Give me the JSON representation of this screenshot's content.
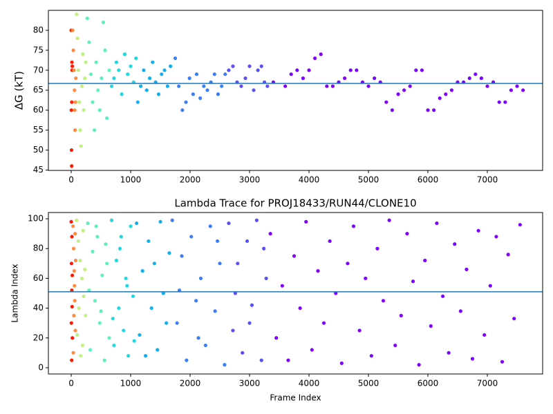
{
  "chart_data": [
    {
      "type": "scatter",
      "ylabel": "ΔG (kT)",
      "xlim": [
        -384,
        7930
      ],
      "ylim": [
        44.9,
        85
      ],
      "xticks": [
        0,
        1000,
        2000,
        3000,
        4000,
        5000,
        6000,
        7000
      ],
      "yticks": [
        45,
        50,
        55,
        60,
        65,
        70,
        75,
        80
      ],
      "hline": 66.7,
      "hline_color": "#1f77b4",
      "series": [
        {
          "color": "#ff1a00",
          "x": [
            0,
            3,
            5,
            8,
            10,
            12,
            15,
            18
          ],
          "values": [
            80,
            60,
            50,
            46,
            62,
            72,
            70,
            71
          ]
        },
        {
          "color": "#ff8a40",
          "x": [
            25,
            35,
            45,
            55,
            60,
            65,
            70,
            78
          ],
          "values": [
            80,
            75,
            70,
            65,
            60,
            55,
            62,
            68
          ]
        },
        {
          "color": "#c0f080",
          "x": [
            90,
            105,
            120,
            135,
            150,
            165,
            180,
            195,
            210,
            230,
            245
          ],
          "values": [
            84,
            78,
            70,
            62,
            55,
            51,
            66,
            74,
            60,
            68,
            72
          ]
        },
        {
          "color": "#60f0c0",
          "x": [
            270,
            300,
            330,
            360,
            390,
            420,
            450,
            480,
            510,
            540,
            570,
            600,
            640
          ],
          "values": [
            83,
            77,
            69,
            62,
            55,
            72,
            65,
            60,
            68,
            82,
            75,
            58,
            70
          ]
        },
        {
          "color": "#20d8e0",
          "x": [
            680,
            720,
            760,
            800,
            850,
            900,
            950,
            1000,
            1050,
            1090
          ],
          "values": [
            66,
            68,
            72,
            70,
            64,
            74,
            69,
            71,
            67,
            73
          ]
        },
        {
          "color": "#10b0f0",
          "x": [
            1120,
            1170,
            1220,
            1270,
            1320,
            1370,
            1420,
            1470,
            1520,
            1570,
            1620,
            1670
          ],
          "values": [
            62,
            66,
            70,
            65,
            68,
            72,
            67,
            64,
            69,
            70,
            66,
            71
          ]
        },
        {
          "color": "#3a7ff8",
          "x": [
            1750,
            1810,
            1870,
            1930,
            1990,
            2050,
            2110,
            2170,
            2230,
            2290,
            2350,
            2410,
            2470,
            2530,
            2590
          ],
          "values": [
            73,
            66,
            60,
            62,
            68,
            64,
            69,
            63,
            66,
            65,
            67,
            69,
            64,
            66,
            69
          ]
        },
        {
          "color": "#5a50f8",
          "x": [
            2650,
            2720,
            2790,
            2860,
            2930,
            3000,
            3070,
            3140,
            3200,
            3250,
            3300
          ],
          "values": [
            70,
            71,
            67,
            66,
            68,
            71,
            65,
            70,
            71,
            67,
            66
          ]
        },
        {
          "color": "#8000ff",
          "x": [
            3400,
            3600,
            3700,
            3800,
            3900,
            4000,
            4100,
            4200,
            4300,
            4400,
            4500,
            4600,
            4700,
            4800,
            4900,
            5000,
            5100,
            5200,
            5300,
            5400,
            5500,
            5600,
            5700,
            5800,
            5900,
            6000,
            6100,
            6200,
            6300,
            6400,
            6500,
            6600,
            6700,
            6800,
            6900,
            7000,
            7100,
            7200,
            7300,
            7400,
            7500,
            7600
          ],
          "values": [
            67,
            66,
            69,
            70,
            68,
            70,
            73,
            74,
            66,
            66,
            67,
            68,
            70,
            70,
            67,
            66,
            68,
            67,
            62,
            60,
            64,
            65,
            66,
            70,
            70,
            60,
            60,
            63,
            64,
            65,
            67,
            67,
            68,
            69,
            68,
            66,
            67,
            62,
            62,
            65,
            66,
            65
          ]
        }
      ]
    },
    {
      "type": "scatter",
      "title": "Lambda Trace for PROJ18433/RUN44/CLONE10",
      "xlabel": "Frame Index",
      "ylabel": "Lambda Index",
      "xlim": [
        -384,
        7930
      ],
      "ylim": [
        -4.2,
        104.2
      ],
      "xticks": [
        0,
        1000,
        2000,
        3000,
        4000,
        5000,
        6000,
        7000
      ],
      "yticks": [
        0,
        20,
        40,
        60,
        80,
        100
      ],
      "hline": 51,
      "hline_color": "#1f77b4",
      "series": [
        {
          "color": "#ff1a00",
          "x": [
            0,
            5,
            10,
            15,
            20,
            8,
            12,
            3,
            18
          ],
          "values": [
            98,
            70,
            52,
            41,
            20,
            5,
            88,
            30,
            62
          ]
        },
        {
          "color": "#ff8a40",
          "x": [
            30,
            40,
            50,
            60,
            70,
            35,
            55,
            65,
            45,
            75
          ],
          "values": [
            95,
            80,
            65,
            45,
            25,
            10,
            55,
            90,
            35,
            72
          ]
        },
        {
          "color": "#c0f080",
          "x": [
            90,
            120,
            150,
            180,
            210,
            240,
            100,
            160,
            200,
            230,
            130,
            190
          ],
          "values": [
            99,
            85,
            72,
            60,
            48,
            35,
            22,
            8,
            92,
            66,
            40,
            15
          ]
        },
        {
          "color": "#60f0c0",
          "x": [
            280,
            320,
            360,
            400,
            440,
            480,
            520,
            560,
            600,
            640,
            300,
            420,
            500,
            580
          ],
          "values": [
            97,
            12,
            78,
            45,
            88,
            30,
            62,
            5,
            70,
            20,
            52,
            95,
            38,
            83
          ]
        },
        {
          "color": "#20d8e0",
          "x": [
            680,
            720,
            760,
            800,
            840,
            880,
            920,
            960,
            1000,
            1040,
            700,
            820,
            940,
            1060
          ],
          "values": [
            99,
            15,
            72,
            40,
            88,
            25,
            60,
            8,
            95,
            48,
            33,
            80,
            55,
            18
          ]
        },
        {
          "color": "#10b0f0",
          "x": [
            1100,
            1150,
            1200,
            1250,
            1300,
            1350,
            1400,
            1450,
            1500,
            1550,
            1600,
            1650
          ],
          "values": [
            97,
            22,
            65,
            8,
            85,
            40,
            70,
            12,
            98,
            50,
            30,
            77
          ]
        },
        {
          "color": "#3a7ff8",
          "x": [
            1700,
            1780,
            1860,
            1940,
            2020,
            2100,
            2180,
            2260,
            2340,
            2420,
            2500,
            2580,
            1820,
            2140,
            2460
          ],
          "values": [
            99,
            30,
            75,
            5,
            88,
            45,
            60,
            15,
            95,
            38,
            70,
            2,
            52,
            20,
            85
          ]
        },
        {
          "color": "#5a50f8",
          "x": [
            2650,
            2720,
            2800,
            2880,
            2960,
            3040,
            3120,
            3200,
            3280,
            2760,
            3000,
            3240
          ],
          "values": [
            97,
            25,
            70,
            10,
            85,
            42,
            99,
            5,
            60,
            50,
            30,
            80
          ]
        },
        {
          "color": "#8000ff",
          "x": [
            3350,
            3450,
            3550,
            3650,
            3750,
            3850,
            3950,
            4050,
            4150,
            4250,
            4350,
            4450,
            4550,
            4650,
            4750,
            4850,
            4950,
            5050,
            5150,
            5250,
            5350,
            5450,
            5550,
            5650,
            5750,
            5850,
            5950,
            6050,
            6150,
            6250,
            6350,
            6450,
            6550,
            6650,
            6750,
            6850,
            6950,
            7050,
            7150,
            7250,
            7350,
            7450,
            7550
          ],
          "values": [
            90,
            20,
            55,
            5,
            75,
            40,
            98,
            12,
            65,
            30,
            85,
            50,
            3,
            70,
            95,
            25,
            60,
            8,
            80,
            45,
            99,
            15,
            35,
            90,
            58,
            2,
            72,
            28,
            97,
            48,
            10,
            83,
            38,
            66,
            6,
            92,
            22,
            55,
            88,
            4,
            76,
            33,
            96
          ]
        }
      ]
    }
  ]
}
